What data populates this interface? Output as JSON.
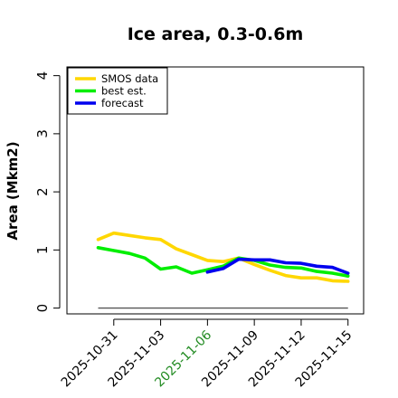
{
  "chart_data": {
    "type": "line",
    "title": "Ice area, 0.3-0.6m",
    "xlabel": "",
    "ylabel": "Area (Mkm2)",
    "xlim": [
      "2025-10-28",
      "2025-11-16"
    ],
    "ylim": [
      -0.1,
      4.15
    ],
    "yticks": [
      0,
      1,
      2,
      3,
      4
    ],
    "xticks": [
      "2025-10-31",
      "2025-11-03",
      "2025-11-06",
      "2025-11-09",
      "2025-11-12",
      "2025-11-15"
    ],
    "xtick_colors": [
      "#000000",
      "#000000",
      "#228B22",
      "#000000",
      "#000000",
      "#000000"
    ],
    "legend_position": "top-left",
    "grid": false,
    "baseline": {
      "value": 0,
      "from": "2025-10-30",
      "to": "2025-11-15",
      "color": "#555555"
    },
    "series": [
      {
        "name": "SMOS data",
        "color": "#FFD700",
        "x": [
          "2025-10-30",
          "2025-10-31",
          "2025-11-01",
          "2025-11-02",
          "2025-11-03",
          "2025-11-04",
          "2025-11-05",
          "2025-11-06",
          "2025-11-07",
          "2025-11-08",
          "2025-11-09",
          "2025-11-10",
          "2025-11-11",
          "2025-11-12",
          "2025-11-13",
          "2025-11-14",
          "2025-11-15"
        ],
        "values": [
          1.18,
          1.29,
          1.25,
          1.21,
          1.18,
          1.02,
          0.92,
          0.82,
          0.8,
          0.86,
          0.75,
          0.65,
          0.56,
          0.52,
          0.52,
          0.47,
          0.46
        ]
      },
      {
        "name": "best est.",
        "color": "#00EE00",
        "x": [
          "2025-10-30",
          "2025-10-31",
          "2025-11-01",
          "2025-11-02",
          "2025-11-03",
          "2025-11-04",
          "2025-11-05",
          "2025-11-06",
          "2025-11-07",
          "2025-11-08",
          "2025-11-09",
          "2025-11-10",
          "2025-11-11",
          "2025-11-12",
          "2025-11-13",
          "2025-11-14",
          "2025-11-15"
        ],
        "values": [
          1.04,
          0.99,
          0.94,
          0.86,
          0.67,
          0.71,
          0.6,
          0.66,
          0.72,
          0.86,
          0.82,
          0.74,
          0.7,
          0.69,
          0.63,
          0.6,
          0.55
        ]
      },
      {
        "name": "forecast",
        "color": "#0000EE",
        "x": [
          "2025-11-06",
          "2025-11-07",
          "2025-11-08",
          "2025-11-09",
          "2025-11-10",
          "2025-11-11",
          "2025-11-12",
          "2025-11-13",
          "2025-11-14",
          "2025-11-15"
        ],
        "values": [
          0.62,
          0.68,
          0.84,
          0.83,
          0.83,
          0.78,
          0.77,
          0.72,
          0.7,
          0.6
        ]
      }
    ]
  }
}
